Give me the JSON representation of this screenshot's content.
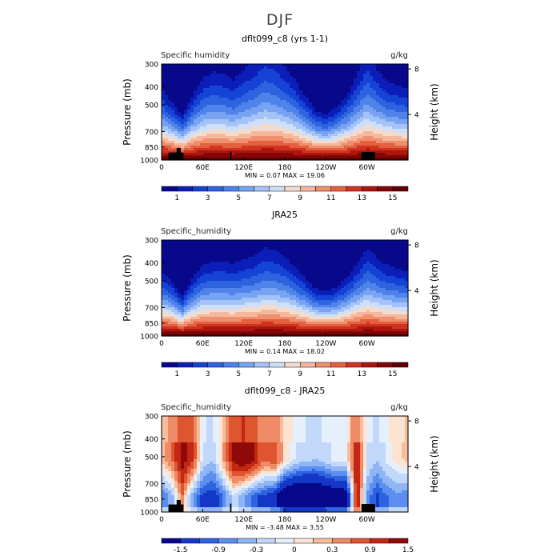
{
  "main_title": "DJF",
  "colors": {
    "seq": [
      "#08088a",
      "#0b1fb8",
      "#1443d6",
      "#2e63e0",
      "#4f83ea",
      "#77a3f2",
      "#a4c3f7",
      "#cfdff9",
      "#f4dccd",
      "#f6b89d",
      "#ef8f6d",
      "#e4603f",
      "#cf3422",
      "#ab160e",
      "#850606",
      "#5e0000"
    ],
    "div": [
      "#08088a",
      "#1437c8",
      "#2e63e0",
      "#5b8eee",
      "#8fb5f5",
      "#c2d8fa",
      "#e6f0fc",
      "#fde3d2",
      "#f8bd9c",
      "#ef8a66",
      "#de5530",
      "#c12713",
      "#8f0909"
    ],
    "terrain": "#000000"
  },
  "chart_data": [
    {
      "type": "heatmap",
      "title": "dflt099_c8 (yrs 1-1)",
      "left_label": "Specific humidity",
      "units": "g/kg",
      "ylabel": "Pressure (mb)",
      "ylabel_right": "Height (km)",
      "yticks": [
        "300",
        "400",
        "500",
        "700",
        "850",
        "1000"
      ],
      "yticks_right": [
        "8",
        "4"
      ],
      "xticks": [
        "0",
        "60E",
        "120E",
        "180",
        "120W",
        "60W"
      ],
      "stats": "MIN =     0.07   MAX =   19.06",
      "colorbar_labels": [
        "1",
        "3",
        "5",
        "7",
        "9",
        "11",
        "13",
        "15"
      ],
      "longitudes": [
        0,
        15,
        30,
        45,
        60,
        75,
        90,
        105,
        120,
        135,
        150,
        165,
        180,
        195,
        210,
        225,
        240,
        255,
        270,
        285,
        300,
        315,
        330,
        345,
        360
      ],
      "moist_top_hpa": [
        520,
        600,
        700,
        560,
        460,
        430,
        440,
        470,
        420,
        380,
        330,
        350,
        400,
        470,
        560,
        660,
        690,
        640,
        560,
        450,
        340,
        420,
        480,
        500,
        520
      ],
      "terrain": [
        {
          "lon": [
            10,
            32
          ],
          "p": 910
        },
        {
          "lon": [
            22,
            28
          ],
          "p": 860
        },
        {
          "lon": [
            100,
            102
          ],
          "p": 900
        },
        {
          "lon": [
            292,
            312
          ],
          "p": 905
        }
      ],
      "palette": "seq"
    },
    {
      "type": "heatmap",
      "title": "JRA25",
      "left_label": "Specific_humidity",
      "units": "g/kg",
      "ylabel": "Pressure (mb)",
      "ylabel_right": "Height (km)",
      "yticks": [
        "300",
        "400",
        "500",
        "700",
        "850",
        "1000"
      ],
      "yticks_right": [
        "8",
        "4"
      ],
      "xticks": [
        "0",
        "60E",
        "120E",
        "180",
        "120W",
        "60W"
      ],
      "stats": "MIN =     0.14   MAX =   18.02",
      "colorbar_labels": [
        "1",
        "3",
        "5",
        "7",
        "9",
        "11",
        "13",
        "15"
      ],
      "longitudes": [
        0,
        15,
        30,
        45,
        60,
        75,
        90,
        105,
        120,
        135,
        150,
        165,
        180,
        195,
        210,
        225,
        240,
        255,
        270,
        285,
        300,
        315,
        330,
        345,
        360
      ],
      "moist_top_hpa": [
        560,
        620,
        740,
        600,
        520,
        500,
        500,
        510,
        490,
        470,
        430,
        440,
        470,
        530,
        600,
        680,
        690,
        670,
        600,
        520,
        430,
        480,
        520,
        540,
        560
      ],
      "terrain": [],
      "palette": "seq"
    },
    {
      "type": "heatmap",
      "title": "dflt099_c8 - JRA25",
      "left_label": "Specific_humidity",
      "units": "g/kg",
      "ylabel": "Pressure (mb)",
      "ylabel_right": "Height (km)",
      "yticks": [
        "300",
        "400",
        "500",
        "700",
        "850",
        "1000"
      ],
      "yticks_right": [
        "8",
        "4"
      ],
      "xticks": [
        "0",
        "60E",
        "120E",
        "180",
        "120W",
        "60W"
      ],
      "stats": "MIN =    -3.48   MAX =    3.55",
      "colorbar_labels": [
        "-1.5",
        "-0.9",
        "-0.3",
        "0",
        "0.3",
        "0.9",
        "1.5"
      ],
      "longitudes": [
        0,
        15,
        30,
        45,
        60,
        75,
        90,
        105,
        120,
        135,
        150,
        165,
        180,
        195,
        210,
        225,
        240,
        255,
        270,
        285,
        300,
        315,
        330,
        345,
        360
      ],
      "diff_upper": [
        0.2,
        0.6,
        1.4,
        1.0,
        -0.4,
        -0.6,
        0.3,
        1.3,
        1.6,
        1.2,
        0.6,
        0.9,
        0.1,
        -0.3,
        -0.5,
        -0.6,
        -0.4,
        -0.2,
        -0.2,
        1.2,
        -0.3,
        -0.6,
        -0.2,
        0.0,
        0.2
      ],
      "diff_lower": [
        -1.2,
        -0.8,
        0.6,
        -0.9,
        -1.6,
        -1.8,
        -1.2,
        -0.4,
        -0.9,
        -1.4,
        -1.6,
        -2.0,
        -3.0,
        -3.4,
        -3.4,
        -3.2,
        -3.0,
        -2.8,
        -2.6,
        1.4,
        -1.0,
        -1.6,
        -1.2,
        -1.0,
        -1.2
      ],
      "terrain": [
        {
          "lon": [
            10,
            32
          ],
          "p": 910
        },
        {
          "lon": [
            22,
            28
          ],
          "p": 860
        },
        {
          "lon": [
            100,
            102
          ],
          "p": 900
        },
        {
          "lon": [
            292,
            312
          ],
          "p": 905
        }
      ],
      "palette": "div"
    }
  ]
}
